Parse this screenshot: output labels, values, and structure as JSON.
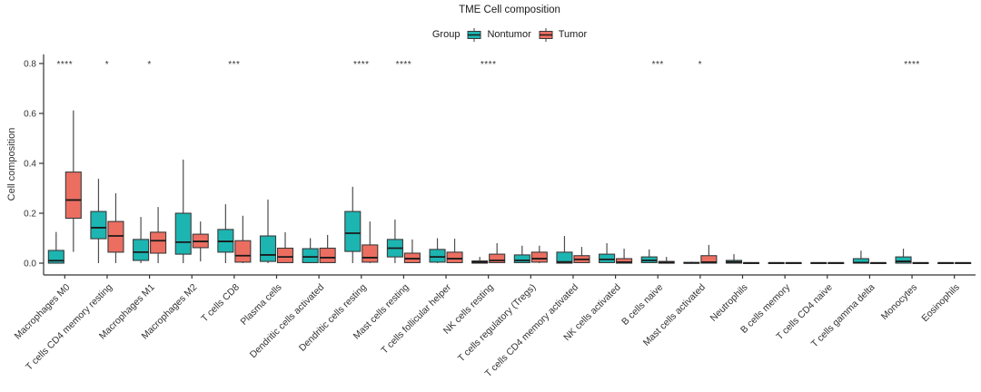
{
  "title": "TME Cell composition",
  "legend": {
    "title": "Group",
    "items": [
      {
        "label": "Nontumor",
        "color": "#1CB5B1"
      },
      {
        "label": "Tumor",
        "color": "#EC6E61"
      }
    ]
  },
  "axes": {
    "y_label": "Cell composition",
    "y_ticks": [
      "0.0",
      "0.2",
      "0.4",
      "0.6",
      "0.8"
    ],
    "ylim": [
      0,
      0.8
    ]
  },
  "colors": {
    "nontumor": "#1CB5B1",
    "tumor": "#EC6E61",
    "box_border": "#3a3a3a",
    "median": "#1a1a1a",
    "whisker": "#4d4d4d",
    "axis": "#333333",
    "star": "#333333"
  },
  "chart_data": {
    "type": "box",
    "title": "TME Cell composition",
    "xlabel": "",
    "ylabel": "Cell composition",
    "ylim": [
      0,
      0.8
    ],
    "grid": false,
    "legend_position": "top",
    "series_names": [
      "Nontumor",
      "Tumor"
    ],
    "categories": [
      {
        "label": "Macrophages M0",
        "significance": "****",
        "nontumor": {
          "lo": 0,
          "q1": 0,
          "med": 0.01,
          "q3": 0.051,
          "hi": 0.125
        },
        "tumor": {
          "lo": 0.045,
          "q1": 0.18,
          "med": 0.253,
          "q3": 0.365,
          "hi": 0.612
        }
      },
      {
        "label": "T cells CD4 memory resting",
        "significance": "*",
        "nontumor": {
          "lo": 0,
          "q1": 0.098,
          "med": 0.142,
          "q3": 0.207,
          "hi": 0.338
        },
        "tumor": {
          "lo": 0,
          "q1": 0.044,
          "med": 0.109,
          "q3": 0.167,
          "hi": 0.28
        }
      },
      {
        "label": "Macrophages M1",
        "significance": "*",
        "nontumor": {
          "lo": 0,
          "q1": 0.011,
          "med": 0.044,
          "q3": 0.095,
          "hi": 0.185
        },
        "tumor": {
          "lo": 0,
          "q1": 0.04,
          "med": 0.09,
          "q3": 0.124,
          "hi": 0.225
        }
      },
      {
        "label": "Macrophages M2",
        "significance": "",
        "nontumor": {
          "lo": 0,
          "q1": 0.036,
          "med": 0.084,
          "q3": 0.2,
          "hi": 0.415
        },
        "tumor": {
          "lo": 0.007,
          "q1": 0.062,
          "med": 0.087,
          "q3": 0.116,
          "hi": 0.167
        }
      },
      {
        "label": "T cells CD8",
        "significance": "***",
        "nontumor": {
          "lo": 0,
          "q1": 0.044,
          "med": 0.087,
          "q3": 0.135,
          "hi": 0.236
        },
        "tumor": {
          "lo": 0,
          "q1": 0.004,
          "med": 0.03,
          "q3": 0.09,
          "hi": 0.19
        }
      },
      {
        "label": "Plasma cells",
        "significance": "",
        "nontumor": {
          "lo": 0,
          "q1": 0.007,
          "med": 0.033,
          "q3": 0.109,
          "hi": 0.255
        },
        "tumor": {
          "lo": 0,
          "q1": 0.002,
          "med": 0.025,
          "q3": 0.06,
          "hi": 0.124
        }
      },
      {
        "label": "Dendritic cells activated",
        "significance": "",
        "nontumor": {
          "lo": 0,
          "q1": 0.002,
          "med": 0.025,
          "q3": 0.058,
          "hi": 0.1
        },
        "tumor": {
          "lo": 0,
          "q1": 0.002,
          "med": 0.022,
          "q3": 0.06,
          "hi": 0.113
        }
      },
      {
        "label": "Dendritic cells resting",
        "significance": "****",
        "nontumor": {
          "lo": 0,
          "q1": 0.047,
          "med": 0.12,
          "q3": 0.207,
          "hi": 0.306
        },
        "tumor": {
          "lo": 0,
          "q1": 0.004,
          "med": 0.022,
          "q3": 0.073,
          "hi": 0.167
        }
      },
      {
        "label": "Mast cells resting",
        "significance": "****",
        "nontumor": {
          "lo": 0,
          "q1": 0.025,
          "med": 0.06,
          "q3": 0.095,
          "hi": 0.175
        },
        "tumor": {
          "lo": 0,
          "q1": 0.002,
          "med": 0.018,
          "q3": 0.04,
          "hi": 0.095
        }
      },
      {
        "label": "T cells follicular helper",
        "significance": "",
        "nontumor": {
          "lo": 0,
          "q1": 0.004,
          "med": 0.025,
          "q3": 0.055,
          "hi": 0.1
        },
        "tumor": {
          "lo": 0,
          "q1": 0.002,
          "med": 0.018,
          "q3": 0.044,
          "hi": 0.098
        }
      },
      {
        "label": "NK cells resting",
        "significance": "****",
        "nontumor": {
          "lo": 0,
          "q1": 0,
          "med": 0.004,
          "q3": 0.009,
          "hi": 0.025
        },
        "tumor": {
          "lo": 0,
          "q1": 0.002,
          "med": 0.011,
          "q3": 0.036,
          "hi": 0.08
        }
      },
      {
        "label": "T cells regulatory (Tregs)",
        "significance": "",
        "nontumor": {
          "lo": 0,
          "q1": 0.002,
          "med": 0.011,
          "q3": 0.033,
          "hi": 0.07
        },
        "tumor": {
          "lo": 0,
          "q1": 0.004,
          "med": 0.018,
          "q3": 0.044,
          "hi": 0.07
        }
      },
      {
        "label": "T cells CD4 memory activated",
        "significance": "",
        "nontumor": {
          "lo": 0,
          "q1": 0,
          "med": 0.005,
          "q3": 0.044,
          "hi": 0.109
        },
        "tumor": {
          "lo": 0,
          "q1": 0.002,
          "med": 0.015,
          "q3": 0.03,
          "hi": 0.065
        }
      },
      {
        "label": "NK cells activated",
        "significance": "",
        "nontumor": {
          "lo": 0,
          "q1": 0.002,
          "med": 0.015,
          "q3": 0.036,
          "hi": 0.08
        },
        "tumor": {
          "lo": 0,
          "q1": 0,
          "med": 0.004,
          "q3": 0.018,
          "hi": 0.058
        }
      },
      {
        "label": "B cells naive",
        "significance": "***",
        "nontumor": {
          "lo": 0,
          "q1": 0.002,
          "med": 0.011,
          "q3": 0.025,
          "hi": 0.055
        },
        "tumor": {
          "lo": 0,
          "q1": 0,
          "med": 0.002,
          "q3": 0.007,
          "hi": 0.025
        }
      },
      {
        "label": "Mast cells activated",
        "significance": "*",
        "nontumor": {
          "lo": 0,
          "q1": 0,
          "med": 0.001,
          "q3": 0.003,
          "hi": 0.006
        },
        "tumor": {
          "lo": 0,
          "q1": 0,
          "med": 0.004,
          "q3": 0.03,
          "hi": 0.073
        }
      },
      {
        "label": "Neutrophils",
        "significance": "",
        "nontumor": {
          "lo": 0,
          "q1": 0,
          "med": 0.005,
          "q3": 0.011,
          "hi": 0.036
        },
        "tumor": {
          "lo": 0,
          "q1": 0,
          "med": 0.001,
          "q3": 0.002,
          "hi": 0.004
        }
      },
      {
        "label": "B cells memory",
        "significance": "",
        "nontumor": {
          "lo": 0,
          "q1": 0,
          "med": 0.001,
          "q3": 0.002,
          "hi": 0.003
        },
        "tumor": {
          "lo": 0,
          "q1": 0,
          "med": 0.001,
          "q3": 0.002,
          "hi": 0.003
        }
      },
      {
        "label": "T cells CD4 naive",
        "significance": "",
        "nontumor": {
          "lo": 0,
          "q1": 0,
          "med": 0.001,
          "q3": 0.002,
          "hi": 0.003
        },
        "tumor": {
          "lo": 0,
          "q1": 0,
          "med": 0.001,
          "q3": 0.002,
          "hi": 0.003
        }
      },
      {
        "label": "T cells gamma delta",
        "significance": "",
        "nontumor": {
          "lo": 0,
          "q1": 0,
          "med": 0.002,
          "q3": 0.018,
          "hi": 0.05
        },
        "tumor": {
          "lo": 0,
          "q1": 0,
          "med": 0.001,
          "q3": 0.002,
          "hi": 0.003
        }
      },
      {
        "label": "Monocytes",
        "significance": "****",
        "nontumor": {
          "lo": 0,
          "q1": 0,
          "med": 0.007,
          "q3": 0.025,
          "hi": 0.058
        },
        "tumor": {
          "lo": 0,
          "q1": 0,
          "med": 0.001,
          "q3": 0.002,
          "hi": 0.003
        }
      },
      {
        "label": "Eosinophils",
        "significance": "",
        "nontumor": {
          "lo": 0,
          "q1": 0,
          "med": 0.001,
          "q3": 0.002,
          "hi": 0.003
        },
        "tumor": {
          "lo": 0,
          "q1": 0,
          "med": 0.001,
          "q3": 0.002,
          "hi": 0.003
        }
      }
    ]
  }
}
